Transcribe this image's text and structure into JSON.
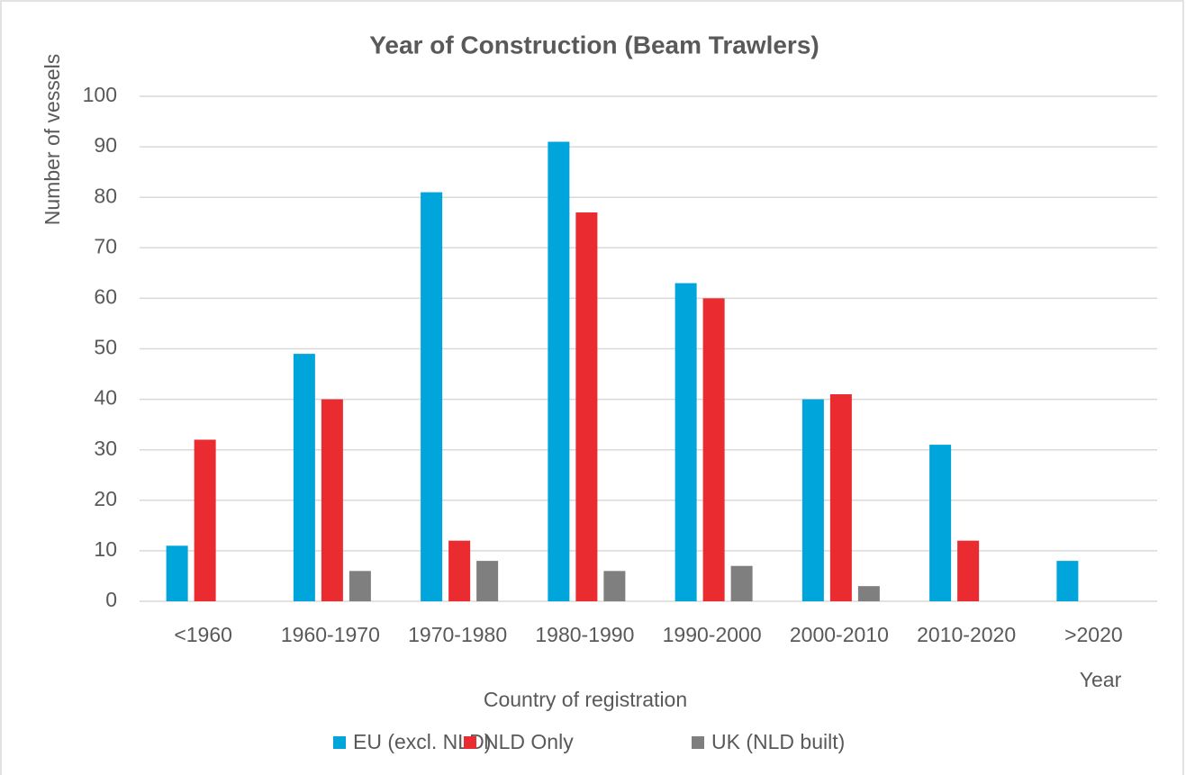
{
  "chart_data": {
    "type": "bar",
    "title": "Year of Construction (Beam Trawlers)",
    "y_label": "Number of vessels",
    "x_label": "Year",
    "subtitle_x": "Country of registration",
    "categories": [
      "<1960",
      "1960-1970",
      "1970-1980",
      "1980-1990",
      "1990-2000",
      "2000-2010",
      "2010-2020",
      ">2020"
    ],
    "series": [
      {
        "name": "EU (excl. NLD)",
        "color": "#00a5db",
        "values": [
          11,
          49,
          81,
          91,
          63,
          40,
          31,
          8
        ]
      },
      {
        "name": "NLD Only",
        "color": "#ea2b2f",
        "values": [
          32,
          40,
          12,
          77,
          60,
          41,
          12,
          0
        ]
      },
      {
        "name": "UK (NLD built)",
        "color": "#7f7f7f",
        "values": [
          0,
          6,
          8,
          6,
          7,
          3,
          0,
          0
        ]
      }
    ],
    "ylim": [
      0,
      100
    ],
    "yticks": [
      0,
      10,
      20,
      30,
      40,
      50,
      60,
      70,
      80,
      90,
      100
    ],
    "grid": true,
    "legend": "bottom"
  }
}
